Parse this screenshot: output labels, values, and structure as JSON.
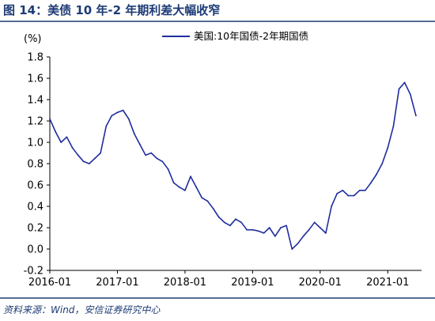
{
  "figure": {
    "title": "图 14：美债 10 年-2 年期利差大幅收窄",
    "source": "资料来源：Wind，安信证券研究中心"
  },
  "colors": {
    "accent": "#1d3b75",
    "series": "#1f2d9e",
    "rule": "#1d3b75"
  },
  "chart_data": {
    "type": "line",
    "title": "",
    "xlabel": "",
    "ylabel": "(%)",
    "ylim": [
      -0.2,
      1.8
    ],
    "yticks": [
      "-0.2",
      "0.0",
      "0.2",
      "0.4",
      "0.6",
      "0.8",
      "1.0",
      "1.2",
      "1.4",
      "1.6",
      "1.8"
    ],
    "xlim": [
      "2016-01",
      "2021-07"
    ],
    "xticks": [
      "2016-01",
      "2017-01",
      "2018-01",
      "2019-01",
      "2020-01",
      "2021-01"
    ],
    "legend_position": "top-right",
    "grid": false,
    "series": [
      {
        "name": "美国:10年国债-2年期国债",
        "color": "#1f2d9e",
        "x": [
          "2016-01",
          "2016-02",
          "2016-03",
          "2016-04",
          "2016-05",
          "2016-06",
          "2016-07",
          "2016-08",
          "2016-09",
          "2016-10",
          "2016-11",
          "2016-12",
          "2017-01",
          "2017-02",
          "2017-03",
          "2017-04",
          "2017-05",
          "2017-06",
          "2017-07",
          "2017-08",
          "2017-09",
          "2017-10",
          "2017-11",
          "2017-12",
          "2018-01",
          "2018-02",
          "2018-03",
          "2018-04",
          "2018-05",
          "2018-06",
          "2018-07",
          "2018-08",
          "2018-09",
          "2018-10",
          "2018-11",
          "2018-12",
          "2019-01",
          "2019-02",
          "2019-03",
          "2019-04",
          "2019-05",
          "2019-06",
          "2019-07",
          "2019-08",
          "2019-09",
          "2019-10",
          "2019-11",
          "2019-12",
          "2020-01",
          "2020-02",
          "2020-03",
          "2020-04",
          "2020-05",
          "2020-06",
          "2020-07",
          "2020-08",
          "2020-09",
          "2020-10",
          "2020-11",
          "2020-12",
          "2021-01",
          "2021-02",
          "2021-03",
          "2021-04",
          "2021-05",
          "2021-06"
        ],
        "values": [
          1.22,
          1.1,
          1.0,
          1.05,
          0.95,
          0.88,
          0.82,
          0.8,
          0.85,
          0.9,
          1.15,
          1.25,
          1.28,
          1.3,
          1.22,
          1.08,
          0.98,
          0.88,
          0.9,
          0.85,
          0.82,
          0.75,
          0.62,
          0.58,
          0.55,
          0.68,
          0.58,
          0.48,
          0.45,
          0.38,
          0.3,
          0.25,
          0.22,
          0.28,
          0.25,
          0.18,
          0.18,
          0.17,
          0.15,
          0.2,
          0.12,
          0.2,
          0.22,
          0.0,
          0.05,
          0.12,
          0.18,
          0.25,
          0.2,
          0.15,
          0.4,
          0.52,
          0.55,
          0.5,
          0.5,
          0.55,
          0.55,
          0.62,
          0.7,
          0.8,
          0.95,
          1.15,
          1.5,
          1.56,
          1.45,
          1.25
        ]
      }
    ]
  }
}
